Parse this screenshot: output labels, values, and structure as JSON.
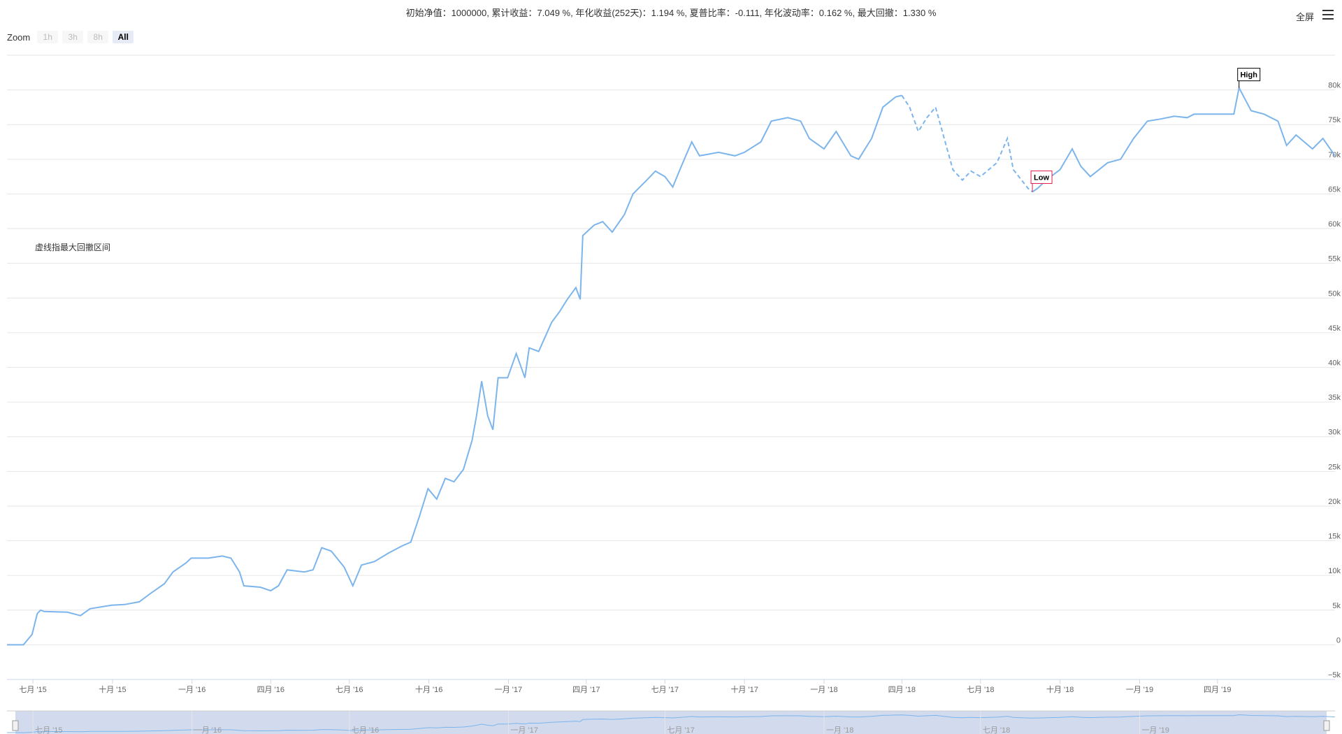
{
  "header": {
    "stats_text": "初始净值：1000000, 累计收益：7.049 %, 年化收益(252天)：1.194 %, 夏普比率：-0.111, 年化波动率：0.162 %, 最大回撤：1.330 %",
    "fullscreen_label": "全屏",
    "menu_icon": "hamburger-menu-icon"
  },
  "zoom": {
    "label": "Zoom",
    "buttons": [
      "1h",
      "3h",
      "8h",
      "All"
    ],
    "active": "All"
  },
  "annotation_text": "虚线指最大回撤区间",
  "colors": {
    "line": "#7cb5ec",
    "grid": "#e6e6e6",
    "low_flag": "#e31d4a",
    "navigator_fill": "#cdd6ec"
  },
  "chart_data": {
    "type": "line",
    "series": [
      {
        "values": [
          [
            "2015-06-01",
            0
          ],
          [
            "2015-06-20",
            0
          ],
          [
            "2015-06-30",
            1500
          ],
          [
            "2015-07-06",
            4500
          ],
          [
            "2015-07-10",
            5000
          ],
          [
            "2015-07-14",
            4800
          ],
          [
            "2015-08-10",
            4700
          ],
          [
            "2015-08-25",
            4200
          ],
          [
            "2015-09-05",
            5200
          ],
          [
            "2015-09-30",
            5700
          ],
          [
            "2015-10-15",
            5800
          ],
          [
            "2015-11-01",
            6200
          ],
          [
            "2015-11-15",
            7500
          ],
          [
            "2015-11-30",
            8800
          ],
          [
            "2015-12-10",
            10500
          ],
          [
            "2015-12-25",
            11800
          ],
          [
            "2015-12-31",
            12500
          ],
          [
            "2016-01-20",
            12500
          ],
          [
            "2016-02-05",
            12800
          ],
          [
            "2016-02-15",
            12500
          ],
          [
            "2016-02-25",
            10500
          ],
          [
            "2016-03-01",
            8500
          ],
          [
            "2016-03-20",
            8300
          ],
          [
            "2016-04-01",
            7800
          ],
          [
            "2016-04-10",
            8500
          ],
          [
            "2016-04-20",
            10800
          ],
          [
            "2016-05-10",
            10500
          ],
          [
            "2016-05-20",
            10800
          ],
          [
            "2016-05-30",
            14000
          ],
          [
            "2016-06-10",
            13500
          ],
          [
            "2016-06-25",
            11200
          ],
          [
            "2016-07-05",
            8500
          ],
          [
            "2016-07-15",
            11500
          ],
          [
            "2016-07-30",
            12000
          ],
          [
            "2016-08-15",
            13200
          ],
          [
            "2016-08-30",
            14200
          ],
          [
            "2016-09-10",
            14800
          ],
          [
            "2016-09-20",
            18500
          ],
          [
            "2016-09-30",
            22500
          ],
          [
            "2016-10-10",
            21000
          ],
          [
            "2016-10-20",
            24000
          ],
          [
            "2016-10-30",
            23500
          ],
          [
            "2016-11-10",
            25300
          ],
          [
            "2016-11-20",
            29500
          ],
          [
            "2016-11-25",
            33000
          ],
          [
            "2016-12-01",
            38000
          ],
          [
            "2016-12-08",
            33000
          ],
          [
            "2016-12-14",
            31000
          ],
          [
            "2016-12-20",
            38500
          ],
          [
            "2016-12-31",
            38500
          ],
          [
            "2017-01-10",
            42000
          ],
          [
            "2017-01-20",
            38500
          ],
          [
            "2017-01-25",
            42800
          ],
          [
            "2017-02-05",
            42300
          ],
          [
            "2017-02-20",
            46500
          ],
          [
            "2017-03-01",
            48000
          ],
          [
            "2017-03-10",
            49800
          ],
          [
            "2017-03-20",
            51500
          ],
          [
            "2017-03-25",
            49800
          ],
          [
            "2017-03-28",
            59000
          ],
          [
            "2017-04-10",
            60500
          ],
          [
            "2017-04-20",
            61000
          ],
          [
            "2017-05-01",
            59500
          ],
          [
            "2017-05-15",
            62000
          ],
          [
            "2017-05-25",
            65000
          ],
          [
            "2017-06-10",
            67000
          ],
          [
            "2017-06-20",
            68300
          ],
          [
            "2017-07-01",
            67500
          ],
          [
            "2017-07-10",
            66000
          ],
          [
            "2017-07-20",
            69000
          ],
          [
            "2017-08-01",
            72500
          ],
          [
            "2017-08-10",
            70500
          ],
          [
            "2017-09-01",
            71000
          ],
          [
            "2017-09-20",
            70500
          ],
          [
            "2017-10-01",
            71000
          ],
          [
            "2017-10-20",
            72500
          ],
          [
            "2017-11-01",
            75500
          ],
          [
            "2017-11-20",
            76000
          ],
          [
            "2017-12-05",
            75500
          ],
          [
            "2017-12-15",
            73000
          ],
          [
            "2018-01-01",
            71500
          ],
          [
            "2018-01-15",
            74000
          ],
          [
            "2018-02-01",
            70500
          ],
          [
            "2018-02-10",
            70000
          ],
          [
            "2018-02-25",
            73000
          ],
          [
            "2018-03-10",
            77500
          ],
          [
            "2018-03-25",
            79000
          ],
          [
            "2018-04-01",
            79200
          ],
          [
            "2018-04-10",
            77500
          ],
          [
            "2018-04-20",
            74000
          ],
          [
            "2018-04-30",
            76000
          ],
          [
            "2018-05-10",
            77500
          ],
          [
            "2018-05-20",
            73000
          ],
          [
            "2018-05-30",
            68500
          ],
          [
            "2018-06-10",
            67000
          ],
          [
            "2018-06-20",
            68300
          ],
          [
            "2018-07-01",
            67500
          ],
          [
            "2018-07-20",
            69500
          ],
          [
            "2018-08-01",
            73000
          ],
          [
            "2018-08-08",
            68500
          ],
          [
            "2018-08-25",
            65800
          ],
          [
            "2018-08-30",
            65300
          ],
          [
            "2018-09-05",
            65800
          ],
          [
            "2018-09-15",
            67000
          ],
          [
            "2018-10-01",
            68500
          ],
          [
            "2018-10-15",
            71500
          ],
          [
            "2018-10-25",
            69000
          ],
          [
            "2018-11-05",
            67500
          ],
          [
            "2018-11-25",
            69500
          ],
          [
            "2018-12-10",
            70000
          ],
          [
            "2018-12-25",
            73000
          ],
          [
            "2019-01-10",
            75500
          ],
          [
            "2019-01-25",
            75800
          ],
          [
            "2019-02-10",
            76200
          ],
          [
            "2019-02-25",
            76000
          ],
          [
            "2019-03-05",
            76500
          ],
          [
            "2019-03-20",
            76500
          ],
          [
            "2019-04-01",
            76500
          ],
          [
            "2019-04-20",
            76500
          ],
          [
            "2019-04-26",
            80300
          ],
          [
            "2019-05-10",
            77000
          ],
          [
            "2019-05-25",
            76500
          ],
          [
            "2019-06-10",
            75500
          ],
          [
            "2019-06-20",
            72000
          ],
          [
            "2019-07-01",
            73500
          ],
          [
            "2019-07-20",
            71500
          ],
          [
            "2019-08-01",
            73000
          ],
          [
            "2019-08-15",
            70500
          ]
        ]
      }
    ],
    "drawdown_range": [
      "2018-04-01",
      "2018-08-30"
    ],
    "flags": [
      {
        "label": "High",
        "date": "2019-04-26",
        "value": 80300
      },
      {
        "label": "Low",
        "date": "2018-08-30",
        "value": 65300
      }
    ],
    "y_ticks": [
      -5000,
      0,
      5000,
      10000,
      15000,
      20000,
      25000,
      30000,
      35000,
      40000,
      45000,
      50000,
      55000,
      60000,
      65000,
      70000,
      75000,
      80000
    ],
    "y_tick_labels": [
      "−5k",
      "0",
      "5k",
      "10k",
      "15k",
      "20k",
      "25k",
      "30k",
      "35k",
      "40k",
      "45k",
      "50k",
      "55k",
      "60k",
      "65k",
      "70k",
      "75k",
      "80k"
    ],
    "x_ticks": [
      "2015-07-01",
      "2015-10-01",
      "2016-01-01",
      "2016-04-01",
      "2016-07-01",
      "2016-10-01",
      "2017-01-01",
      "2017-04-01",
      "2017-07-01",
      "2017-10-01",
      "2018-01-01",
      "2018-04-01",
      "2018-07-01",
      "2018-10-01",
      "2019-01-01",
      "2019-04-01"
    ],
    "x_tick_labels": [
      "七月 '15",
      "十月 '15",
      "一月 '16",
      "四月 '16",
      "七月 '16",
      "十月 '16",
      "一月 '17",
      "四月 '17",
      "七月 '17",
      "十月 '17",
      "一月 '18",
      "四月 '18",
      "七月 '18",
      "十月 '18",
      "一月 '19",
      "四月 '19"
    ],
    "x_range": [
      "2015-06-01",
      "2019-08-15"
    ],
    "ylim": [
      -5000,
      85000
    ],
    "navigator_ticks": [
      "2015-07-01",
      "2016-01-01",
      "2016-07-01",
      "2017-01-01",
      "2017-07-01",
      "2018-01-01",
      "2018-07-01",
      "2019-01-01"
    ],
    "navigator_tick_labels": [
      "七月 '15",
      "一月 '16",
      "七月 '16",
      "一月 '17",
      "七月 '17",
      "一月 '18",
      "七月 '18",
      "一月 '19"
    ],
    "grid": true,
    "legend": "none"
  }
}
